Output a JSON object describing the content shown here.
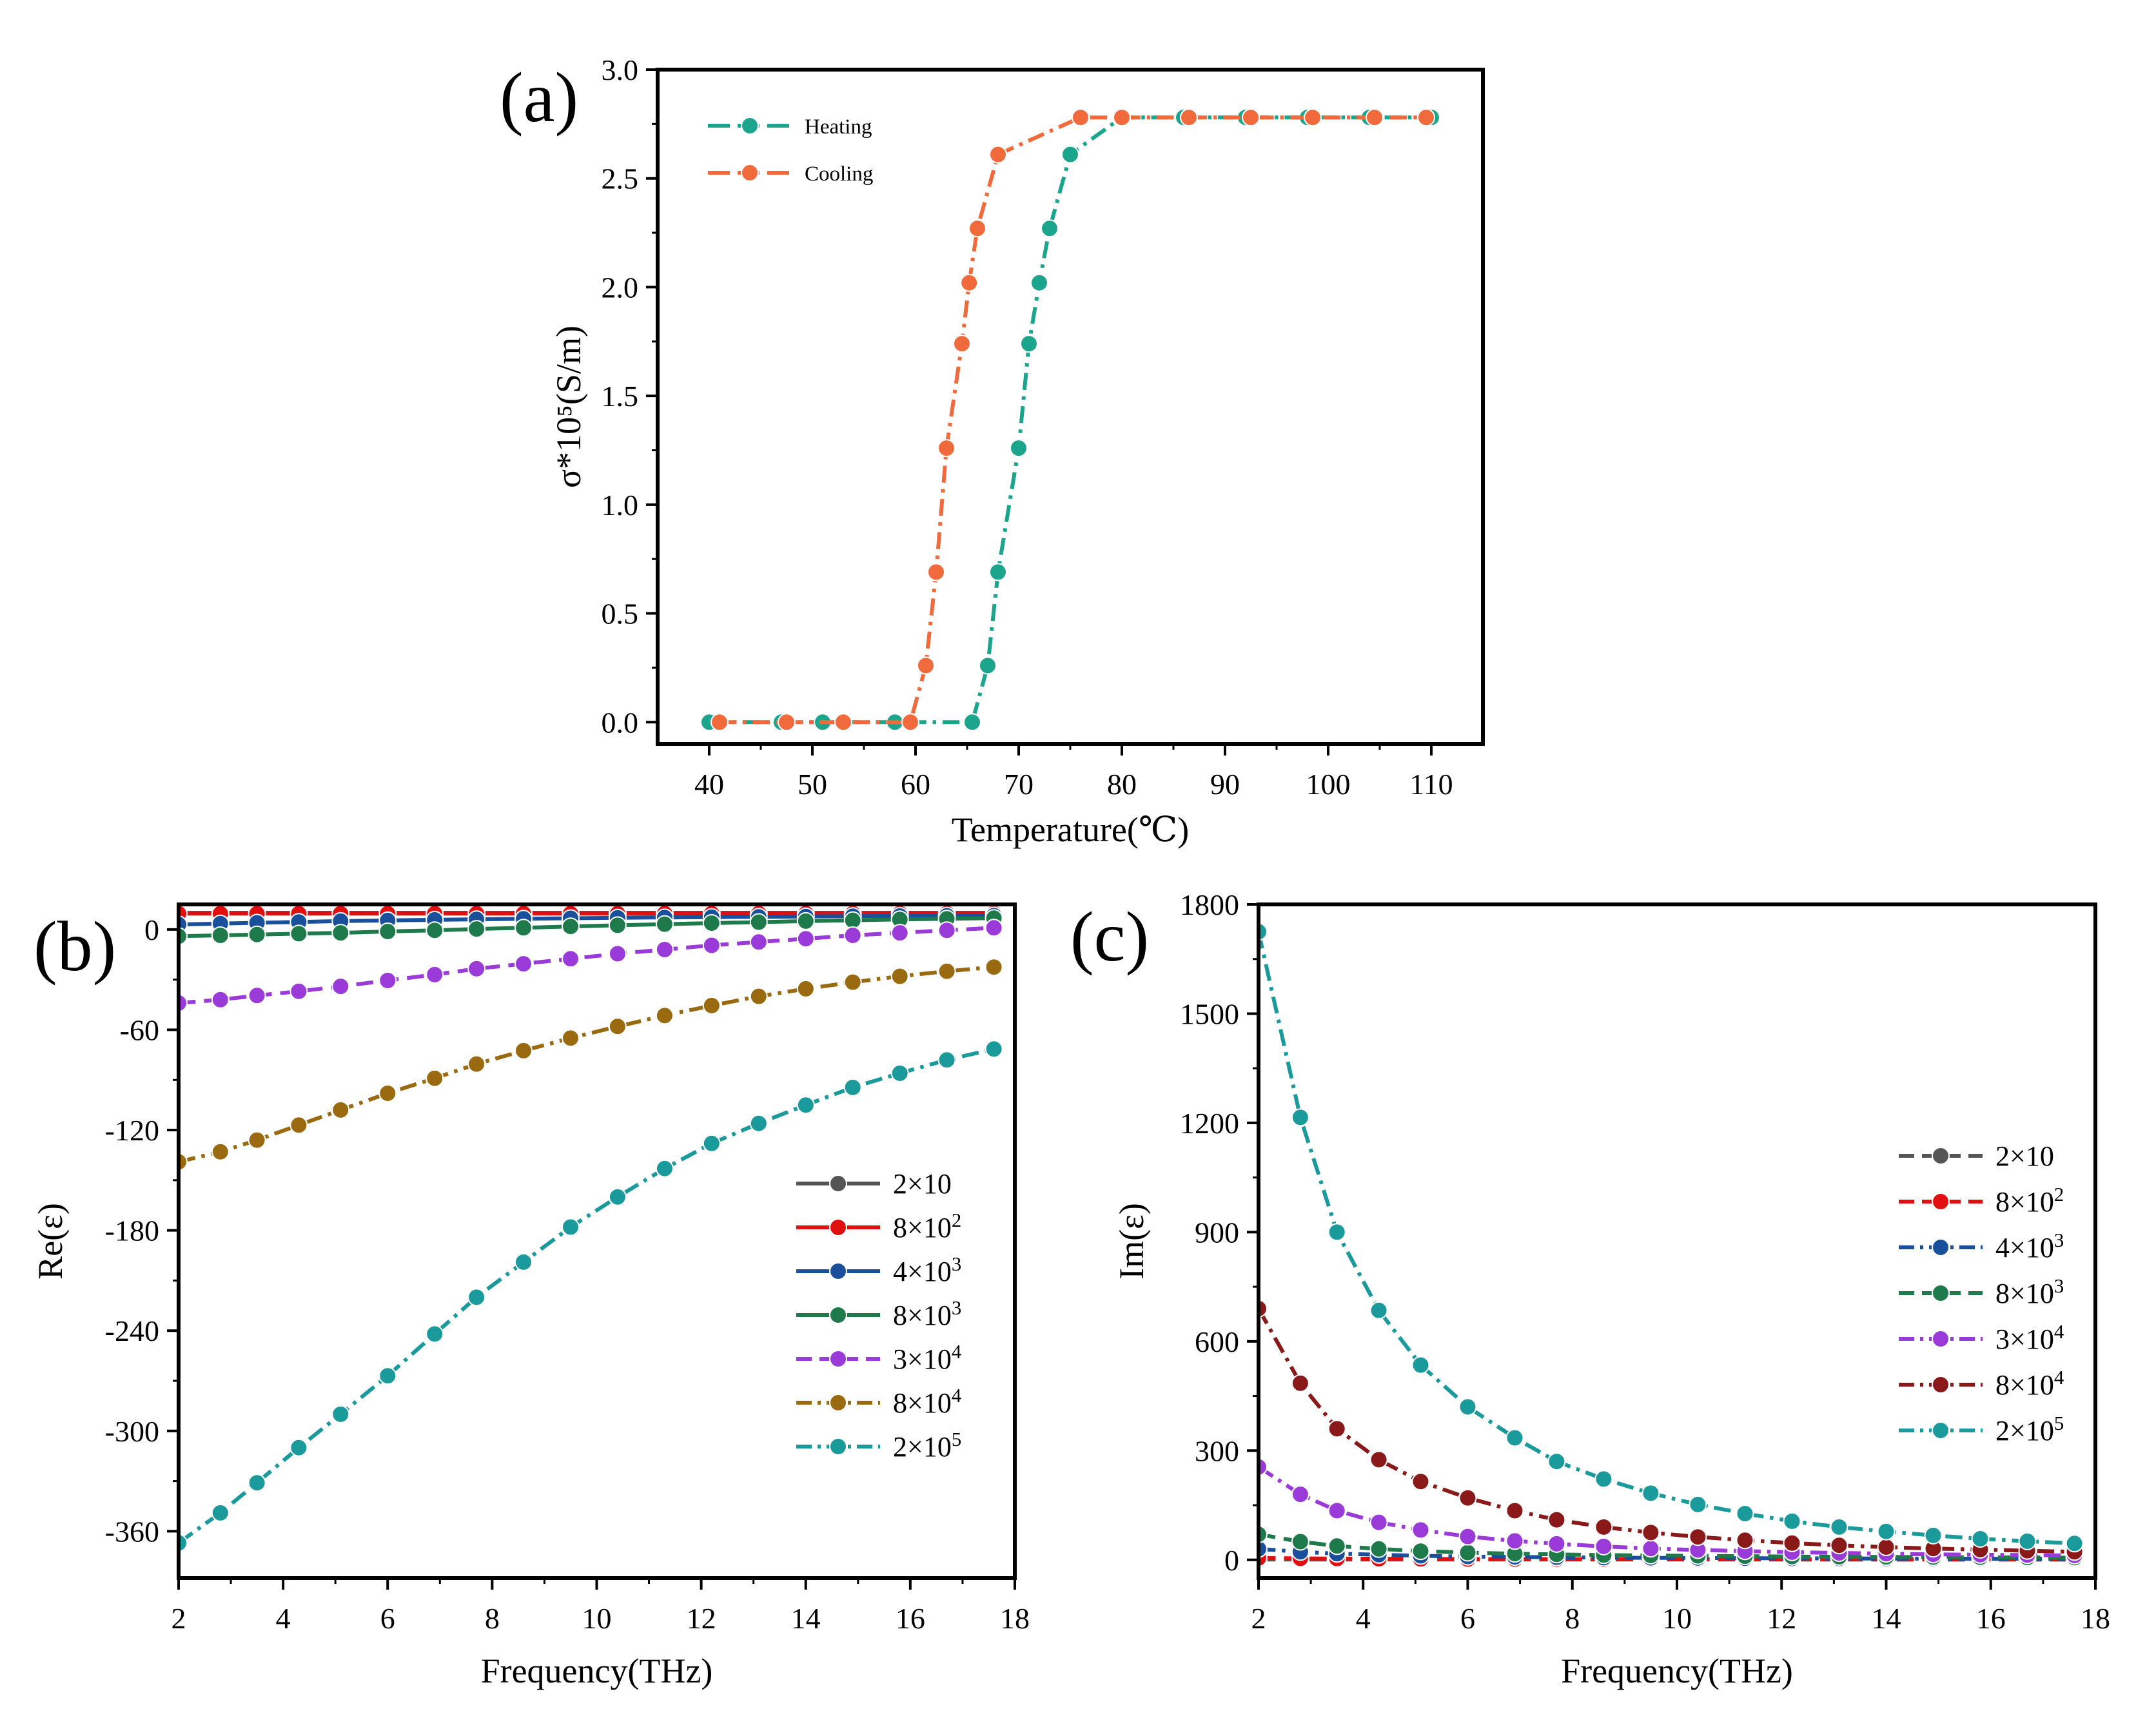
{
  "chart_data": [
    {
      "panel": "(a)",
      "type": "line",
      "xlabel": "Temperature(℃)",
      "ylabel": "σ*10⁵(S/m)",
      "xlim": [
        35,
        115
      ],
      "ylim": [
        -0.1,
        3.0
      ],
      "xticks": [
        40,
        50,
        60,
        70,
        80,
        90,
        100,
        110
      ],
      "xtick_labels": [
        "40",
        "50",
        "60",
        "70",
        "80",
        "90",
        "100",
        "110"
      ],
      "yticks": [
        0.0,
        0.5,
        1.0,
        1.5,
        2.0,
        2.5,
        3.0
      ],
      "ytick_labels": [
        "0.0",
        "0.5",
        "1.0",
        "1.5",
        "2.0",
        "2.5",
        "3.0"
      ],
      "legend_position": "top-left",
      "series": [
        {
          "name": "Heating",
          "color": "#1aa58c",
          "dash": "dashdot",
          "x": [
            40,
            47,
            51,
            58,
            65.5,
            67,
            68,
            70,
            71,
            72,
            73,
            75,
            80,
            86,
            92,
            98,
            104,
            110
          ],
          "y": [
            0.0,
            0.0,
            0.0,
            0.0,
            0.0,
            0.26,
            0.69,
            1.26,
            1.74,
            2.02,
            2.27,
            2.61,
            2.78,
            2.78,
            2.78,
            2.78,
            2.78,
            2.78
          ]
        },
        {
          "name": "Cooling",
          "color": "#f06a3c",
          "dash": "dashdot",
          "x": [
            41,
            47.5,
            53,
            59.5,
            61,
            62,
            63,
            64.5,
            65.2,
            66,
            68,
            76,
            80,
            86.5,
            92.5,
            98.5,
            104.5,
            109.5
          ],
          "y": [
            0.0,
            0.0,
            0.0,
            0.0,
            0.26,
            0.69,
            1.26,
            1.74,
            2.02,
            2.27,
            2.61,
            2.78,
            2.78,
            2.78,
            2.78,
            2.78,
            2.78,
            2.78
          ]
        }
      ]
    },
    {
      "panel": "(b)",
      "type": "line",
      "xlabel": "Frequency(THz)",
      "ylabel": "Re(ε)",
      "xlim": [
        2,
        18
      ],
      "ylim": [
        -388,
        15
      ],
      "xticks": [
        2,
        4,
        6,
        8,
        10,
        12,
        14,
        16,
        18
      ],
      "xtick_labels": [
        "2",
        "4",
        "6",
        "8",
        "10",
        "12",
        "14",
        "16",
        "18"
      ],
      "yticks": [
        0,
        -60,
        -120,
        -180,
        -240,
        -300,
        -360
      ],
      "ytick_labels": [
        "0",
        "-60",
        "-120",
        "-180",
        "-240",
        "-300",
        "-360"
      ],
      "legend_position": "center-right",
      "x": [
        2,
        2.8,
        3.5,
        4.3,
        5.1,
        6.0,
        6.9,
        7.7,
        8.6,
        9.5,
        10.4,
        11.3,
        12.2,
        13.1,
        14.0,
        14.9,
        15.8,
        16.7,
        17.6
      ],
      "series": [
        {
          "name": "2×10",
          "color": "#555555",
          "dash": "solid",
          "y": [
            10,
            10,
            10,
            10,
            10,
            10,
            10,
            10,
            10,
            10,
            10,
            10,
            10,
            10,
            10,
            10,
            10,
            10,
            10
          ]
        },
        {
          "name": "8×10²",
          "color": "#e01010",
          "dash": "solid",
          "y": [
            9.5,
            9.5,
            9.5,
            9.5,
            9.5,
            9.5,
            9.5,
            9.5,
            9.5,
            9.5,
            9.5,
            9.5,
            9.5,
            9.5,
            9.5,
            9.5,
            9.5,
            9.5,
            9.5
          ]
        },
        {
          "name": "4×10³",
          "color": "#1a4f9c",
          "dash": "solid",
          "y": [
            3,
            3.5,
            4,
            4.5,
            5,
            5.4,
            5.8,
            6.1,
            6.4,
            6.7,
            7.0,
            7.2,
            7.4,
            7.6,
            7.8,
            8.0,
            8.1,
            8.2,
            8.3
          ]
        },
        {
          "name": "8×10³",
          "color": "#1e7a4a",
          "dash": "solid",
          "y": [
            -4,
            -3.5,
            -3,
            -2.5,
            -2,
            -1.2,
            -0.5,
            0.3,
            1.0,
            1.8,
            2.5,
            3.2,
            3.8,
            4.4,
            5.0,
            5.5,
            6.0,
            6.4,
            6.8
          ]
        },
        {
          "name": "3×10⁴",
          "color": "#9a3ad8",
          "dash": "dashed",
          "y": [
            -44,
            -42,
            -39.5,
            -37,
            -34,
            -30.5,
            -27,
            -23.5,
            -20.5,
            -17.5,
            -14.5,
            -12,
            -9.5,
            -7.5,
            -5.5,
            -3.5,
            -2,
            -0.5,
            1
          ]
        },
        {
          "name": "8×10⁴",
          "color": "#9a6a10",
          "dash": "dashdot",
          "y": [
            -139,
            -133,
            -126,
            -117,
            -108,
            -98,
            -89,
            -80.5,
            -72.5,
            -65,
            -58,
            -51.5,
            -45.5,
            -40,
            -35.5,
            -31.5,
            -28,
            -25,
            -22.5
          ]
        },
        {
          "name": "2×10⁵",
          "color": "#1a9a9a",
          "dash": "dashdot",
          "y": [
            -367,
            -349,
            -331,
            -310,
            -290,
            -267,
            -242,
            -220,
            -199,
            -178,
            -160,
            -143,
            -128,
            -116,
            -105,
            -94.5,
            -86,
            -78,
            -71.5
          ]
        }
      ]
    },
    {
      "panel": "(c)",
      "type": "line",
      "xlabel": "Frequency(THz)",
      "ylabel": "Im(ε)",
      "xlim": [
        2,
        18
      ],
      "ylim": [
        -50,
        1800
      ],
      "xticks": [
        2,
        4,
        6,
        8,
        10,
        12,
        14,
        16,
        18
      ],
      "xtick_labels": [
        "2",
        "4",
        "6",
        "8",
        "10",
        "12",
        "14",
        "16",
        "18"
      ],
      "yticks": [
        0,
        300,
        600,
        900,
        1200,
        1500,
        1800
      ],
      "ytick_labels": [
        "0",
        "300",
        "600",
        "900",
        "1200",
        "1500",
        "1800"
      ],
      "legend_position": "center-right",
      "x": [
        2,
        2.8,
        3.5,
        4.3,
        5.1,
        6.0,
        6.9,
        7.7,
        8.6,
        9.5,
        10.4,
        11.3,
        12.2,
        13.1,
        14.0,
        14.9,
        15.8,
        16.7,
        17.6
      ],
      "series": [
        {
          "name": "2×10",
          "color": "#555555",
          "dash": "dashed",
          "y": [
            1,
            1,
            1,
            1,
            1,
            1,
            1,
            1,
            1,
            1,
            1,
            1,
            1,
            1,
            1,
            1,
            1,
            1,
            1
          ]
        },
        {
          "name": "8×10²",
          "color": "#e01010",
          "dash": "dashed",
          "y": [
            5,
            4,
            3.5,
            3,
            2.5,
            2,
            2,
            1.8,
            1.6,
            1.5,
            1.4,
            1.3,
            1.2,
            1.1,
            1,
            1,
            1,
            1,
            1
          ]
        },
        {
          "name": "4×10³",
          "color": "#1a4f9c",
          "dash": "dashdot",
          "y": [
            30,
            22,
            17,
            14,
            11,
            9,
            8,
            7,
            6,
            5.5,
            5,
            4.5,
            4,
            3.8,
            3.5,
            3.2,
            3,
            2.8,
            2.6
          ]
        },
        {
          "name": "8×10³",
          "color": "#1e7a4a",
          "dash": "dashed",
          "y": [
            70,
            50,
            38,
            30,
            24,
            20,
            17,
            15,
            13,
            12,
            11,
            10,
            9,
            8.5,
            8,
            7.5,
            7,
            6.5,
            6
          ]
        },
        {
          "name": "3×10⁴",
          "color": "#9a3ad8",
          "dash": "dashdot",
          "y": [
            255,
            180,
            135,
            103,
            82,
            64,
            52,
            44,
            37,
            31,
            27,
            24,
            21,
            19,
            17,
            15,
            14,
            13,
            12
          ]
        },
        {
          "name": "8×10⁴",
          "color": "#8a1a1a",
          "dash": "dashdot",
          "y": [
            690,
            485,
            360,
            275,
            215,
            170,
            135,
            110,
            90,
            75,
            63,
            54,
            46,
            40,
            35,
            31,
            28,
            25,
            22
          ]
        },
        {
          "name": "2×10⁵",
          "color": "#1a9a9a",
          "dash": "dashdot",
          "y": [
            1725,
            1215,
            900,
            685,
            535,
            420,
            335,
            270,
            222,
            183,
            152,
            127,
            106,
            90,
            78,
            67,
            58,
            51,
            45
          ]
        }
      ]
    }
  ]
}
